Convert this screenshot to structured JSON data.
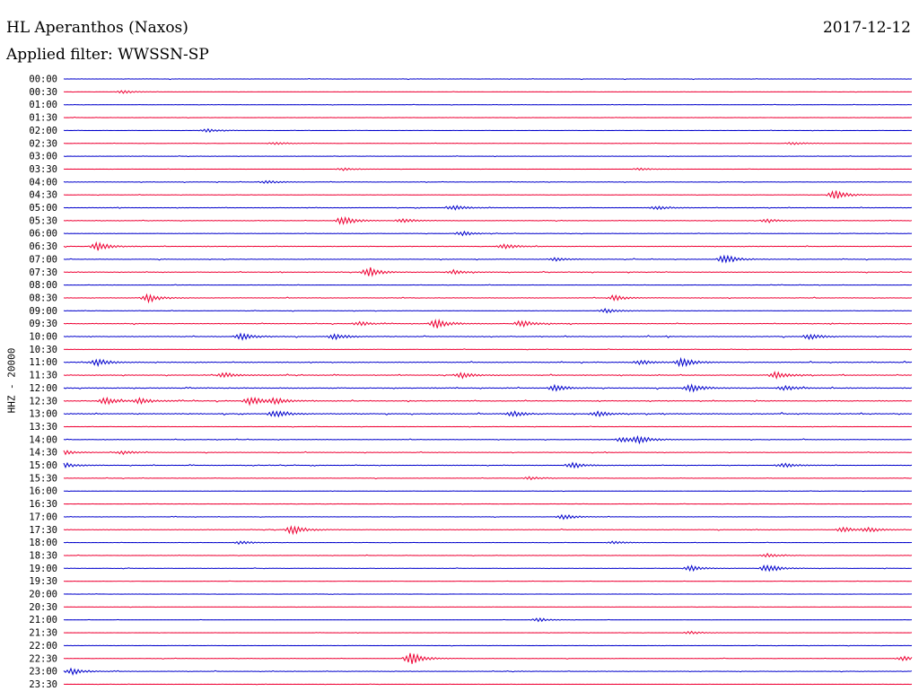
{
  "header": {
    "station": "HL Aperanthos (Naxos)",
    "date": "2017-12-12",
    "filter": "Applied filter: WWSSN-SP"
  },
  "channel_label": "HHZ - 20000",
  "colors": {
    "even": "#0000cc",
    "odd": "#ee0033"
  },
  "chart_data": {
    "type": "line",
    "title": "HL Aperanthos (Naxos)",
    "subtitle": "Applied filter: WWSSN-SP",
    "ylabel": "HHZ - 20000",
    "rows": [
      {
        "time": "00:00",
        "level": 0.15,
        "events": []
      },
      {
        "time": "00:30",
        "level": 0.08,
        "events": [
          {
            "t": 0.07,
            "amp": 0.35
          }
        ]
      },
      {
        "time": "01:00",
        "level": 0.12,
        "events": []
      },
      {
        "time": "01:30",
        "level": 0.12,
        "events": []
      },
      {
        "time": "02:00",
        "level": 0.1,
        "events": [
          {
            "t": 0.17,
            "amp": 0.4
          }
        ]
      },
      {
        "time": "02:30",
        "level": 0.12,
        "events": [
          {
            "t": 0.25,
            "amp": 0.3
          },
          {
            "t": 0.86,
            "amp": 0.3
          }
        ]
      },
      {
        "time": "03:00",
        "level": 0.15,
        "events": []
      },
      {
        "time": "03:30",
        "level": 0.1,
        "events": [
          {
            "t": 0.33,
            "amp": 0.3
          },
          {
            "t": 0.68,
            "amp": 0.25
          }
        ]
      },
      {
        "time": "04:00",
        "level": 0.18,
        "events": [
          {
            "t": 0.24,
            "amp": 0.35
          }
        ]
      },
      {
        "time": "04:30",
        "level": 0.12,
        "events": [
          {
            "t": 0.91,
            "amp": 1.0
          }
        ]
      },
      {
        "time": "05:00",
        "level": 0.2,
        "events": [
          {
            "t": 0.46,
            "amp": 0.6
          },
          {
            "t": 0.7,
            "amp": 0.4
          }
        ]
      },
      {
        "time": "05:30",
        "level": 0.2,
        "events": [
          {
            "t": 0.33,
            "amp": 1.0
          },
          {
            "t": 0.4,
            "amp": 0.5
          },
          {
            "t": 0.83,
            "amp": 0.4
          }
        ]
      },
      {
        "time": "06:00",
        "level": 0.15,
        "events": [
          {
            "t": 0.47,
            "amp": 0.5
          }
        ]
      },
      {
        "time": "06:30",
        "level": 0.22,
        "events": [
          {
            "t": 0.04,
            "amp": 0.9
          },
          {
            "t": 0.52,
            "amp": 0.6
          }
        ]
      },
      {
        "time": "07:00",
        "level": 0.22,
        "events": [
          {
            "t": 0.78,
            "amp": 1.0
          },
          {
            "t": 0.58,
            "amp": 0.4
          }
        ]
      },
      {
        "time": "07:30",
        "level": 0.22,
        "events": [
          {
            "t": 0.36,
            "amp": 1.0
          },
          {
            "t": 0.46,
            "amp": 0.5
          }
        ]
      },
      {
        "time": "08:00",
        "level": 0.15,
        "events": []
      },
      {
        "time": "08:30",
        "level": 0.22,
        "events": [
          {
            "t": 0.1,
            "amp": 0.9
          },
          {
            "t": 0.65,
            "amp": 0.55
          }
        ]
      },
      {
        "time": "09:00",
        "level": 0.15,
        "events": [
          {
            "t": 0.64,
            "amp": 0.5
          }
        ]
      },
      {
        "time": "09:30",
        "level": 0.25,
        "events": [
          {
            "t": 0.44,
            "amp": 1.0
          },
          {
            "t": 0.54,
            "amp": 0.8
          },
          {
            "t": 0.35,
            "amp": 0.45
          }
        ]
      },
      {
        "time": "10:00",
        "level": 0.3,
        "events": [
          {
            "t": 0.21,
            "amp": 0.7
          },
          {
            "t": 0.32,
            "amp": 0.6
          },
          {
            "t": 0.88,
            "amp": 0.6
          }
        ]
      },
      {
        "time": "10:30",
        "level": 0.15,
        "events": []
      },
      {
        "time": "11:00",
        "level": 0.3,
        "events": [
          {
            "t": 0.04,
            "amp": 0.8
          },
          {
            "t": 0.73,
            "amp": 1.0
          },
          {
            "t": 0.68,
            "amp": 0.5
          }
        ]
      },
      {
        "time": "11:30",
        "level": 0.3,
        "events": [
          {
            "t": 0.19,
            "amp": 0.55
          },
          {
            "t": 0.47,
            "amp": 0.6
          },
          {
            "t": 0.84,
            "amp": 0.7
          }
        ]
      },
      {
        "time": "12:00",
        "level": 0.35,
        "events": [
          {
            "t": 0.58,
            "amp": 0.7
          },
          {
            "t": 0.74,
            "amp": 0.8
          },
          {
            "t": 0.85,
            "amp": 0.45
          }
        ]
      },
      {
        "time": "12:30",
        "level": 0.3,
        "events": [
          {
            "t": 0.05,
            "amp": 0.8
          },
          {
            "t": 0.09,
            "amp": 0.6
          },
          {
            "t": 0.22,
            "amp": 0.9
          },
          {
            "t": 0.25,
            "amp": 0.6
          }
        ]
      },
      {
        "time": "13:00",
        "level": 0.35,
        "events": [
          {
            "t": 0.25,
            "amp": 0.8
          },
          {
            "t": 0.63,
            "amp": 0.6
          },
          {
            "t": 0.53,
            "amp": 0.55
          }
        ]
      },
      {
        "time": "13:30",
        "level": 0.15,
        "events": []
      },
      {
        "time": "14:00",
        "level": 0.2,
        "events": [
          {
            "t": 0.66,
            "amp": 0.6
          },
          {
            "t": 0.68,
            "amp": 0.7
          }
        ]
      },
      {
        "time": "14:30",
        "level": 0.2,
        "events": [
          {
            "t": 0.0,
            "amp": 0.5
          },
          {
            "t": 0.07,
            "amp": 0.4
          }
        ]
      },
      {
        "time": "15:00",
        "level": 0.2,
        "events": [
          {
            "t": 0.0,
            "amp": 0.6
          },
          {
            "t": 0.6,
            "amp": 0.6
          },
          {
            "t": 0.85,
            "amp": 0.5
          }
        ]
      },
      {
        "time": "15:30",
        "level": 0.18,
        "events": [
          {
            "t": 0.55,
            "amp": 0.35
          }
        ]
      },
      {
        "time": "16:00",
        "level": 0.1,
        "events": []
      },
      {
        "time": "16:30",
        "level": 0.12,
        "events": []
      },
      {
        "time": "17:00",
        "level": 0.15,
        "events": [
          {
            "t": 0.59,
            "amp": 0.55
          }
        ]
      },
      {
        "time": "17:30",
        "level": 0.22,
        "events": [
          {
            "t": 0.27,
            "amp": 1.0
          },
          {
            "t": 0.92,
            "amp": 0.6
          },
          {
            "t": 0.95,
            "amp": 0.5
          }
        ]
      },
      {
        "time": "18:00",
        "level": 0.12,
        "events": [
          {
            "t": 0.21,
            "amp": 0.35
          },
          {
            "t": 0.65,
            "amp": 0.35
          }
        ]
      },
      {
        "time": "18:30",
        "level": 0.15,
        "events": [
          {
            "t": 0.83,
            "amp": 0.4
          }
        ]
      },
      {
        "time": "19:00",
        "level": 0.15,
        "events": [
          {
            "t": 0.74,
            "amp": 0.6
          },
          {
            "t": 0.83,
            "amp": 0.9
          }
        ]
      },
      {
        "time": "19:30",
        "level": 0.08,
        "events": []
      },
      {
        "time": "20:00",
        "level": 0.1,
        "events": []
      },
      {
        "time": "20:30",
        "level": 0.1,
        "events": []
      },
      {
        "time": "21:00",
        "level": 0.08,
        "events": [
          {
            "t": 0.56,
            "amp": 0.4
          }
        ]
      },
      {
        "time": "21:30",
        "level": 0.1,
        "events": [
          {
            "t": 0.74,
            "amp": 0.35
          }
        ]
      },
      {
        "time": "22:00",
        "level": 0.12,
        "events": []
      },
      {
        "time": "22:30",
        "level": 0.15,
        "events": [
          {
            "t": 0.41,
            "amp": 1.4
          },
          {
            "t": 0.99,
            "amp": 0.5
          }
        ]
      },
      {
        "time": "23:00",
        "level": 0.18,
        "events": [
          {
            "t": 0.01,
            "amp": 0.7
          }
        ]
      },
      {
        "time": "23:30",
        "level": 0.1,
        "events": []
      }
    ]
  }
}
